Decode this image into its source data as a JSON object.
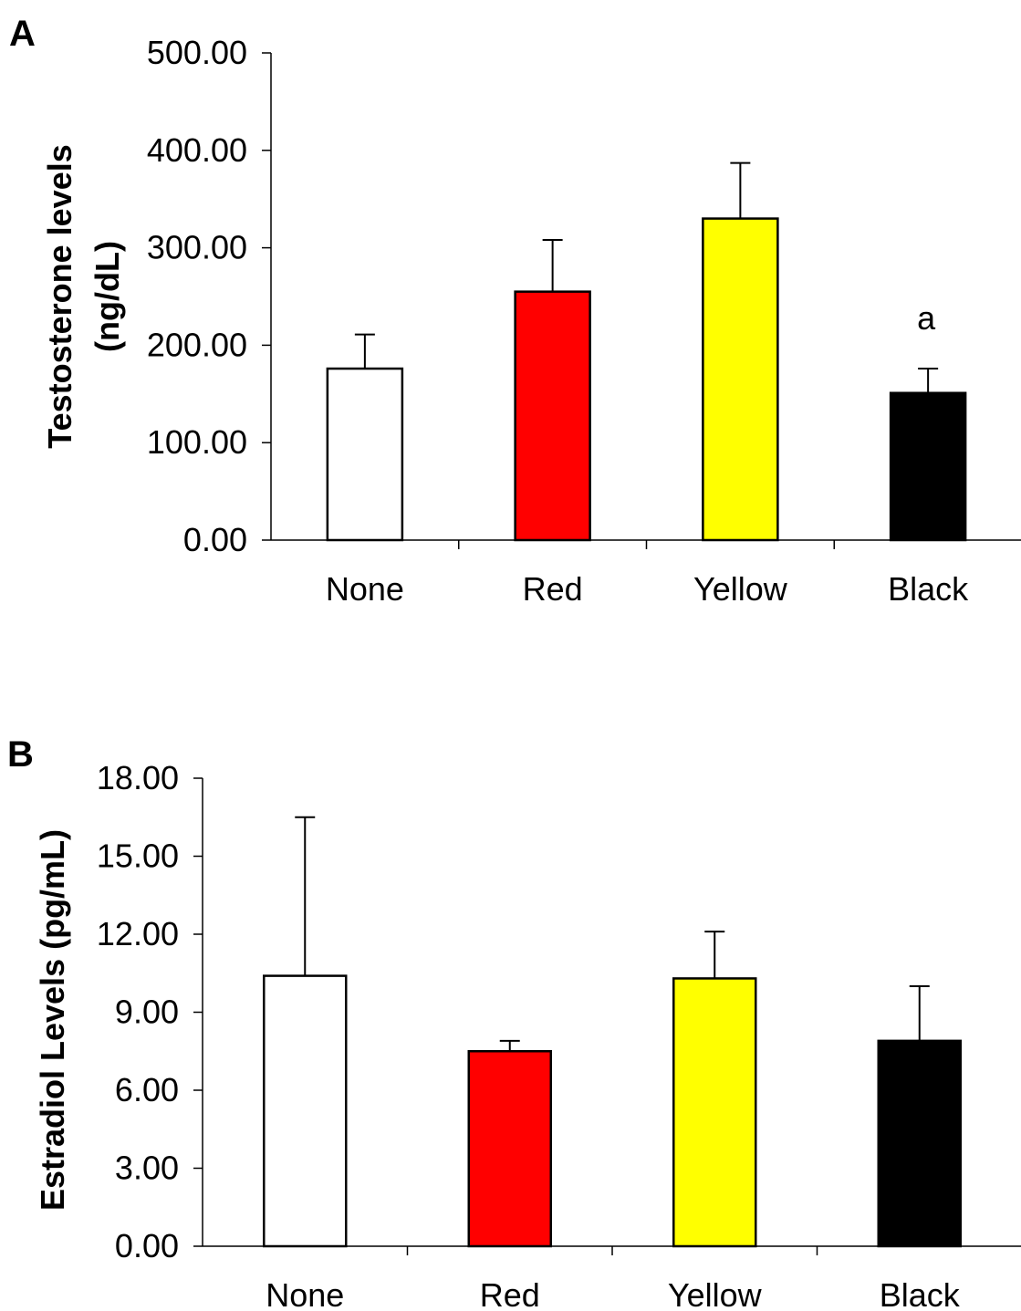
{
  "chart_data": [
    {
      "panel": "A",
      "type": "bar",
      "categories": [
        "None",
        "Red",
        "Yellow",
        "Black"
      ],
      "values": [
        176,
        255,
        330,
        151
      ],
      "error_upper": [
        211,
        308,
        387,
        176
      ],
      "colors": [
        "#ffffff",
        "#ff0000",
        "#ffff00",
        "#000000"
      ],
      "ylabel_lines": [
        "Testosterone levels",
        "(ng/dL)"
      ],
      "ylim": [
        0,
        500
      ],
      "yticks": [
        0,
        100,
        200,
        300,
        400,
        500
      ],
      "ytick_labels": [
        "0.00",
        "100.00",
        "200.00",
        "300.00",
        "400.00",
        "500.00"
      ],
      "annotations": [
        {
          "category": "Black",
          "text": "a"
        }
      ],
      "grid": false
    },
    {
      "panel": "B",
      "type": "bar",
      "categories": [
        "None",
        "Red",
        "Yellow",
        "Black"
      ],
      "values": [
        10.4,
        7.5,
        10.3,
        7.9
      ],
      "error_upper": [
        16.5,
        7.9,
        12.1,
        10.0
      ],
      "colors": [
        "#ffffff",
        "#ff0000",
        "#ffff00",
        "#000000"
      ],
      "ylabel_lines": [
        "Estradiol Levels (pg/mL)"
      ],
      "ylim": [
        0,
        18
      ],
      "yticks": [
        0,
        3,
        6,
        9,
        12,
        15,
        18
      ],
      "ytick_labels": [
        "0.00",
        "3.00",
        "6.00",
        "9.00",
        "12.00",
        "15.00",
        "18.00"
      ],
      "annotations": [],
      "grid": false
    }
  ]
}
